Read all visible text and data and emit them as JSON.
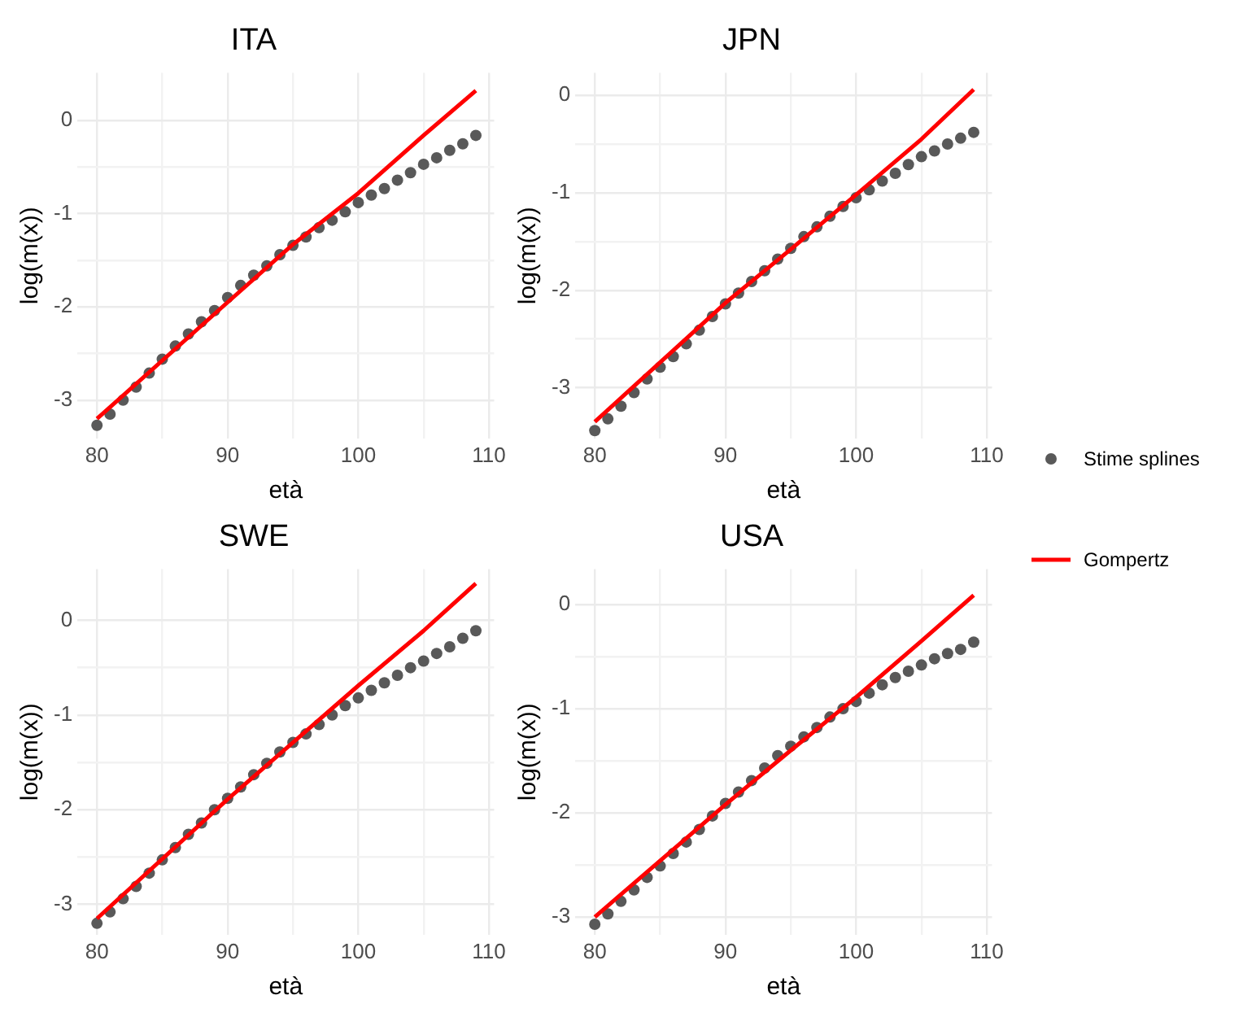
{
  "chart_data": [
    {
      "type": "line",
      "title": "ITA",
      "xlabel": "età",
      "ylabel": "log(m(x))",
      "grid": true,
      "legend": "right",
      "xlim": [
        78.5,
        110.4
      ],
      "ylim": [
        -3.41,
        0.51
      ],
      "xticks": [
        80,
        {
          "value": 85,
          "label": null
        },
        90,
        {
          "value": 95,
          "label": null
        },
        100,
        {
          "value": 105,
          "label": null
        },
        110
      ],
      "yticks": [
        -3,
        {
          "value": -2.5,
          "label": null
        },
        -2,
        {
          "value": -1.5,
          "label": null
        },
        -1,
        {
          "value": -0.5,
          "label": null
        },
        0
      ],
      "series": [
        {
          "name": "Stime splines",
          "type": "scatter",
          "marker": "circle",
          "color": "#595959",
          "x": [
            80,
            81,
            82,
            83,
            84,
            85,
            86,
            87,
            88,
            89,
            90,
            91,
            92,
            93,
            94,
            95,
            96,
            97,
            98,
            99,
            100,
            101,
            102,
            103,
            104,
            105,
            106,
            107,
            108,
            109
          ],
          "values": [
            -3.27,
            -3.15,
            -3.0,
            -2.86,
            -2.71,
            -2.56,
            -2.42,
            -2.29,
            -2.16,
            -2.04,
            -1.9,
            -1.77,
            -1.66,
            -1.56,
            -1.44,
            -1.34,
            -1.25,
            -1.15,
            -1.07,
            -0.98,
            -0.88,
            -0.8,
            -0.73,
            -0.64,
            -0.56,
            -0.47,
            -0.4,
            -0.32,
            -0.25,
            -0.16
          ]
        },
        {
          "name": "Gompertz",
          "type": "line",
          "marker": "none",
          "line_style": "solid",
          "color": "#ff0000",
          "x": [
            80,
            90,
            95,
            100,
            105,
            109
          ],
          "values": [
            -3.2,
            -1.95,
            -1.33,
            -0.78,
            -0.16,
            0.32
          ]
        }
      ]
    },
    {
      "type": "line",
      "title": "JPN",
      "xlabel": "età",
      "ylabel": "log(m(x))",
      "grid": true,
      "legend": "right",
      "xlim": [
        78.5,
        110.4
      ],
      "ylim": [
        -3.52,
        0.23
      ],
      "xticks": [
        80,
        {
          "value": 85,
          "label": null
        },
        90,
        {
          "value": 95,
          "label": null
        },
        100,
        {
          "value": 105,
          "label": null
        },
        110
      ],
      "yticks": [
        -3,
        {
          "value": -2.5,
          "label": null
        },
        -2,
        {
          "value": -1.5,
          "label": null
        },
        -1,
        {
          "value": -0.5,
          "label": null
        },
        0
      ],
      "series": [
        {
          "name": "Stime splines",
          "type": "scatter",
          "marker": "circle",
          "color": "#595959",
          "x": [
            80,
            81,
            82,
            83,
            84,
            85,
            86,
            87,
            88,
            89,
            90,
            91,
            92,
            93,
            94,
            95,
            96,
            97,
            98,
            99,
            100,
            101,
            102,
            103,
            104,
            105,
            106,
            107,
            108,
            109
          ],
          "values": [
            -3.44,
            -3.32,
            -3.19,
            -3.05,
            -2.91,
            -2.79,
            -2.68,
            -2.55,
            -2.41,
            -2.27,
            -2.14,
            -2.03,
            -1.91,
            -1.8,
            -1.68,
            -1.57,
            -1.45,
            -1.35,
            -1.24,
            -1.14,
            -1.05,
            -0.97,
            -0.88,
            -0.8,
            -0.71,
            -0.63,
            -0.57,
            -0.5,
            -0.44,
            -0.38
          ]
        },
        {
          "name": "Gompertz",
          "type": "line",
          "marker": "none",
          "line_style": "solid",
          "color": "#ff0000",
          "x": [
            80,
            90,
            95,
            100,
            105,
            109
          ],
          "values": [
            -3.35,
            -2.13,
            -1.58,
            -1.02,
            -0.45,
            0.06
          ]
        }
      ]
    },
    {
      "type": "line",
      "title": "SWE",
      "xlabel": "età",
      "ylabel": "log(m(x))",
      "grid": true,
      "legend": "right",
      "xlim": [
        78.5,
        110.4
      ],
      "ylim": [
        -3.32,
        0.54
      ],
      "xticks": [
        80,
        {
          "value": 85,
          "label": null
        },
        90,
        {
          "value": 95,
          "label": null
        },
        100,
        {
          "value": 105,
          "label": null
        },
        110
      ],
      "yticks": [
        -3,
        {
          "value": -2.5,
          "label": null
        },
        -2,
        {
          "value": -1.5,
          "label": null
        },
        -1,
        {
          "value": -0.5,
          "label": null
        },
        0
      ],
      "series": [
        {
          "name": "Stime splines",
          "type": "scatter",
          "marker": "circle",
          "color": "#595959",
          "x": [
            80,
            81,
            82,
            83,
            84,
            85,
            86,
            87,
            88,
            89,
            90,
            91,
            92,
            93,
            94,
            95,
            96,
            97,
            98,
            99,
            100,
            101,
            102,
            103,
            104,
            105,
            106,
            107,
            108,
            109
          ],
          "values": [
            -3.2,
            -3.08,
            -2.94,
            -2.81,
            -2.67,
            -2.53,
            -2.4,
            -2.26,
            -2.14,
            -2.0,
            -1.88,
            -1.76,
            -1.63,
            -1.51,
            -1.39,
            -1.29,
            -1.2,
            -1.1,
            -1.0,
            -0.9,
            -0.82,
            -0.74,
            -0.66,
            -0.58,
            -0.5,
            -0.43,
            -0.35,
            -0.28,
            -0.19,
            -0.11
          ]
        },
        {
          "name": "Gompertz",
          "type": "line",
          "marker": "none",
          "line_style": "solid",
          "color": "#ff0000",
          "x": [
            80,
            90,
            95,
            100,
            105,
            109
          ],
          "values": [
            -3.15,
            -1.89,
            -1.29,
            -0.69,
            -0.11,
            0.39
          ]
        }
      ]
    },
    {
      "type": "line",
      "title": "USA",
      "xlabel": "età",
      "ylabel": "log(m(x))",
      "grid": true,
      "legend": "right",
      "xlim": [
        78.5,
        110.4
      ],
      "ylim": [
        -3.17,
        0.34
      ],
      "xticks": [
        80,
        {
          "value": 85,
          "label": null
        },
        90,
        {
          "value": 95,
          "label": null
        },
        100,
        {
          "value": 105,
          "label": null
        },
        110
      ],
      "yticks": [
        -3,
        {
          "value": -2.5,
          "label": null
        },
        -2,
        {
          "value": -1.5,
          "label": null
        },
        -1,
        {
          "value": -0.5,
          "label": null
        },
        0
      ],
      "series": [
        {
          "name": "Stime splines",
          "type": "scatter",
          "marker": "circle",
          "color": "#595959",
          "x": [
            80,
            81,
            82,
            83,
            84,
            85,
            86,
            87,
            88,
            89,
            90,
            91,
            92,
            93,
            94,
            95,
            96,
            97,
            98,
            99,
            100,
            101,
            102,
            103,
            104,
            105,
            106,
            107,
            108,
            109
          ],
          "values": [
            -3.07,
            -2.97,
            -2.85,
            -2.74,
            -2.62,
            -2.51,
            -2.39,
            -2.28,
            -2.16,
            -2.03,
            -1.91,
            -1.8,
            -1.69,
            -1.57,
            -1.45,
            -1.36,
            -1.27,
            -1.18,
            -1.08,
            -1.0,
            -0.93,
            -0.85,
            -0.77,
            -0.7,
            -0.64,
            -0.58,
            -0.52,
            -0.47,
            -0.43,
            -0.36
          ]
        },
        {
          "name": "Gompertz",
          "type": "line",
          "marker": "none",
          "line_style": "solid",
          "color": "#ff0000",
          "x": [
            80,
            90,
            95,
            100,
            105,
            109
          ],
          "values": [
            -3.0,
            -1.92,
            -1.4,
            -0.89,
            -0.35,
            0.09
          ]
        }
      ]
    }
  ]
}
